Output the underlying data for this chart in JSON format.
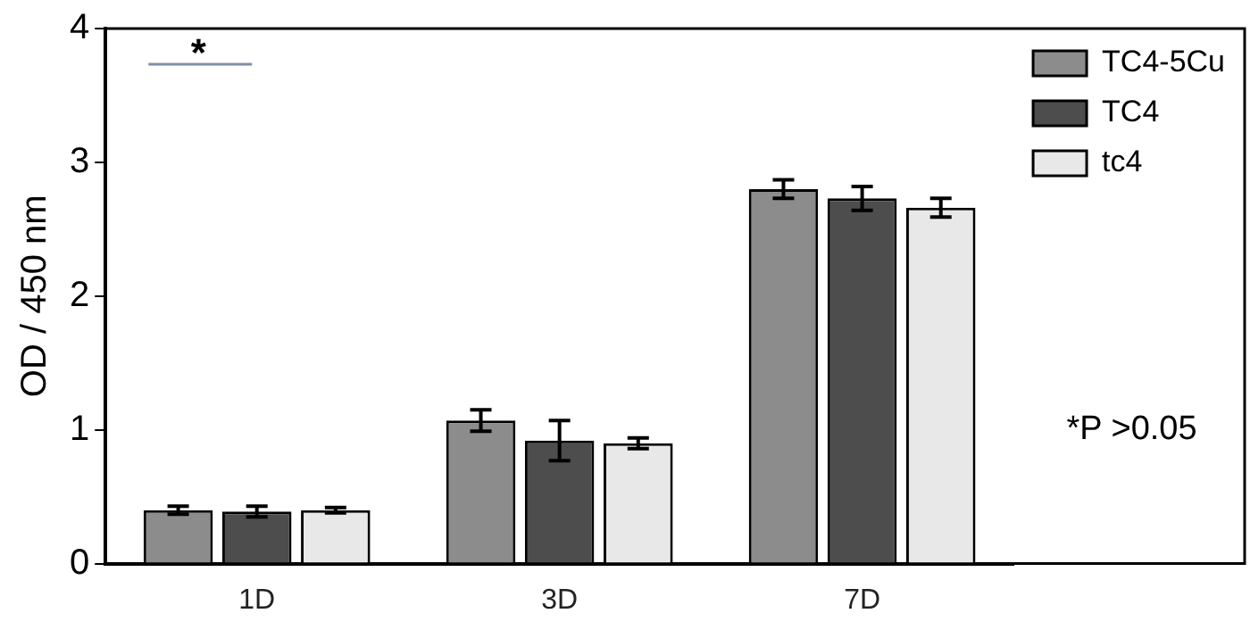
{
  "chart_data": {
    "type": "bar",
    "categories": [
      "1D",
      "3D",
      "7D"
    ],
    "ylabel": "OD / 450 nm",
    "ylim": [
      0,
      4
    ],
    "yticks": [
      0,
      1,
      2,
      3,
      4
    ],
    "grid": false,
    "legend": "top right",
    "series": [
      {
        "name": "TC4-5Cu",
        "color": "#8c8c8c",
        "values": [
          0.4,
          1.07,
          2.8
        ],
        "errors": [
          0.03,
          0.08,
          0.07
        ]
      },
      {
        "name": "TC4",
        "color": "#4d4d4d",
        "values": [
          0.39,
          0.92,
          2.73
        ],
        "errors": [
          0.04,
          0.15,
          0.09
        ]
      },
      {
        "name": "tc4",
        "color": "#e8e8e8",
        "values": [
          0.4,
          0.9,
          2.66
        ],
        "errors": [
          0.02,
          0.04,
          0.07
        ]
      }
    ],
    "annotations": [
      "*",
      "*P >0.05"
    ]
  }
}
